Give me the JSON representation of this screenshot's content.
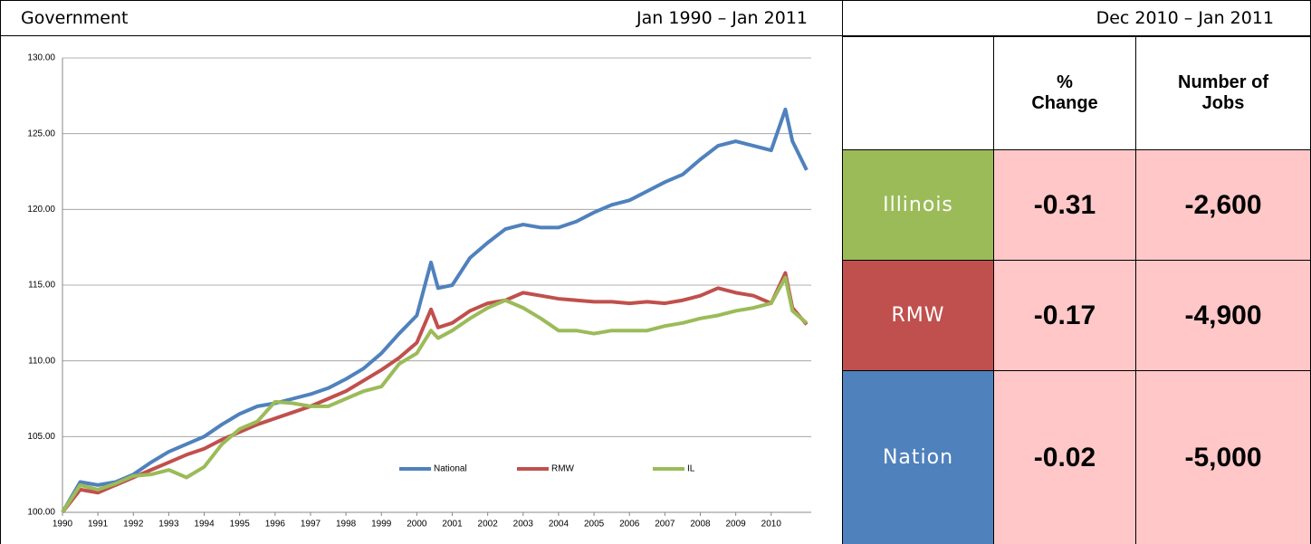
{
  "header": {
    "title": "Government",
    "period": "Jan 1990 – Jan 2011",
    "table_period": "Dec 2010 – Jan 2011"
  },
  "chart_data": {
    "type": "line",
    "x": [
      1990,
      1990.5,
      1991,
      1991.5,
      1992,
      1992.5,
      1993,
      1993.5,
      1994,
      1994.5,
      1995,
      1995.5,
      1996,
      1996.5,
      1997,
      1997.5,
      1998,
      1998.5,
      1999,
      1999.5,
      2000,
      2000.4,
      2000.6,
      2001,
      2001.5,
      2002,
      2002.5,
      2003,
      2003.5,
      2004,
      2004.5,
      2005,
      2005.5,
      2006,
      2006.5,
      2007,
      2007.5,
      2008,
      2008.5,
      2009,
      2009.5,
      2010,
      2010.4,
      2010.6,
      2011
    ],
    "series": [
      {
        "name": "National",
        "color": "#4f81bd",
        "values": [
          100,
          102,
          101.8,
          102,
          102.5,
          103.3,
          104,
          104.5,
          105,
          105.8,
          106.5,
          107,
          107.2,
          107.5,
          107.8,
          108.2,
          108.8,
          109.5,
          110.5,
          111.8,
          113,
          116.5,
          114.8,
          115,
          116.8,
          117.8,
          118.7,
          119,
          118.8,
          118.8,
          119.2,
          119.8,
          120.3,
          120.6,
          121.2,
          121.8,
          122.3,
          123.3,
          124.2,
          124.5,
          124.2,
          123.9,
          126.6,
          124.5,
          122.6
        ]
      },
      {
        "name": "RMW",
        "color": "#c0504d",
        "values": [
          100,
          101.5,
          101.3,
          101.8,
          102.3,
          102.8,
          103.3,
          103.8,
          104.2,
          104.8,
          105.3,
          105.8,
          106.2,
          106.6,
          107,
          107.5,
          108,
          108.7,
          109.4,
          110.2,
          111.2,
          113.4,
          112.2,
          112.5,
          113.3,
          113.8,
          114,
          114.5,
          114.3,
          114.1,
          114,
          113.9,
          113.9,
          113.8,
          113.9,
          113.8,
          114,
          114.3,
          114.8,
          114.5,
          114.3,
          113.8,
          115.8,
          113.5,
          112.4
        ]
      },
      {
        "name": "IL",
        "color": "#9bbb59",
        "values": [
          100,
          101.8,
          101.5,
          101.9,
          102.4,
          102.5,
          102.8,
          102.3,
          103,
          104.5,
          105.5,
          106,
          107.3,
          107.2,
          107,
          107,
          107.5,
          108,
          108.3,
          109.8,
          110.5,
          112,
          111.5,
          112,
          112.8,
          113.5,
          114,
          113.5,
          112.8,
          112,
          112,
          111.8,
          112,
          112,
          112,
          112.3,
          112.5,
          112.8,
          113,
          113.3,
          113.5,
          113.8,
          115.5,
          113.3,
          112.5
        ]
      }
    ],
    "xlim": [
      1990,
      2011.13
    ],
    "xticks": [
      1990,
      1991,
      1992,
      1993,
      1994,
      1995,
      1996,
      1997,
      1998,
      1999,
      2000,
      2001,
      2002,
      2003,
      2004,
      2005,
      2006,
      2007,
      2008,
      2009,
      2010
    ],
    "ylim": [
      100,
      130
    ],
    "yticks": [
      {
        "value": 100,
        "label": "100.00"
      },
      {
        "value": 105,
        "label": "105.00"
      },
      {
        "value": 110,
        "label": "110.00"
      },
      {
        "value": 115,
        "label": "115.00"
      },
      {
        "value": 120,
        "label": "120.00"
      },
      {
        "value": 125,
        "label": "125.00"
      },
      {
        "value": 130,
        "label": "130.00"
      }
    ],
    "grid": true,
    "legend": "bottom"
  },
  "table": {
    "columns": [
      "% Change",
      "Number of Jobs"
    ],
    "rows": [
      {
        "label": "Illinois",
        "color": "#9bbb59",
        "pct": "-0.31",
        "jobs": "-2,600"
      },
      {
        "label": "RMW",
        "color": "#c0504d",
        "pct": "-0.17",
        "jobs": "-4,900"
      },
      {
        "label": "Nation",
        "color": "#4f81bd",
        "pct": "-0.02",
        "jobs": "-5,000"
      }
    ]
  }
}
